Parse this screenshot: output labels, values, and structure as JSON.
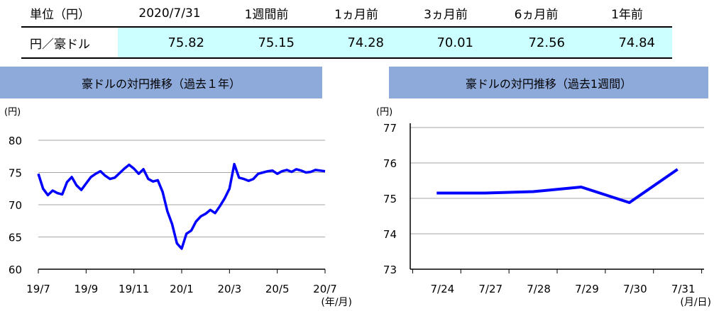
{
  "table": {
    "unit_label": "単位（円）",
    "columns": [
      "2020/7/31",
      "1週間前",
      "1ヵ月前",
      "3ヵ月前",
      "6ヵ月前",
      "1年前"
    ],
    "row_label": "円／豪ドル",
    "values": [
      "75.82",
      "75.15",
      "74.28",
      "70.01",
      "72.56",
      "74.84"
    ]
  },
  "chart_data": [
    {
      "type": "line",
      "title": "豪ドルの対円推移（過去１年）",
      "ylabel": "(円)",
      "xlabel": "(年/月)",
      "ylim": [
        60,
        80
      ],
      "yticks": [
        "60",
        "65",
        "70",
        "75",
        "80"
      ],
      "x_tick_labels": [
        "19/7",
        "19/9",
        "19/11",
        "20/1",
        "20/3",
        "20/5",
        "20/7"
      ],
      "grid": true,
      "line_color": "#0000ff",
      "series": [
        {
          "x": [
            0,
            0.1,
            0.2,
            0.3,
            0.4,
            0.5,
            0.6,
            0.7,
            0.8,
            0.9,
            1.0,
            1.1,
            1.2,
            1.3,
            1.4,
            1.5,
            1.6,
            1.7,
            1.8,
            1.9,
            2.0,
            2.1,
            2.2,
            2.3,
            2.4,
            2.5,
            2.6,
            2.7,
            2.8,
            2.9,
            3.0,
            3.1,
            3.2,
            3.3,
            3.4,
            3.5,
            3.6,
            3.7,
            3.8,
            3.9,
            4.0,
            4.1,
            4.2,
            4.3,
            4.4,
            4.5,
            4.6,
            4.7,
            4.8,
            4.9,
            5.0,
            5.1,
            5.2,
            5.3,
            5.4,
            5.5,
            5.6,
            5.7,
            5.8,
            5.9,
            6.0
          ],
          "y": [
            74.8,
            72.5,
            71.5,
            72.2,
            71.8,
            71.6,
            73.5,
            74.3,
            73.0,
            72.3,
            73.3,
            74.3,
            74.8,
            75.2,
            74.5,
            74.0,
            74.2,
            74.9,
            75.6,
            76.2,
            75.6,
            74.8,
            75.5,
            74.0,
            73.6,
            73.8,
            72.0,
            69.0,
            67.0,
            64.0,
            63.2,
            65.5,
            66.0,
            67.4,
            68.2,
            68.6,
            69.2,
            68.7,
            69.8,
            71.0,
            72.5,
            76.3,
            74.2,
            74.0,
            73.7,
            74.0,
            74.8,
            75.0,
            75.2,
            75.3,
            74.8,
            75.2,
            75.4,
            75.1,
            75.5,
            75.3,
            75.0,
            75.1,
            75.4,
            75.3,
            75.2
          ]
        }
      ]
    },
    {
      "type": "line",
      "title": "豪ドルの対円推移（過去1週間）",
      "ylabel": "(円)",
      "xlabel": "(月/日)",
      "ylim": [
        73,
        77
      ],
      "yticks": [
        "73",
        "74",
        "75",
        "76",
        "77"
      ],
      "categories": [
        "7/24",
        "7/27",
        "7/28",
        "7/29",
        "7/30",
        "7/31"
      ],
      "grid": true,
      "line_color": "#0000ff",
      "series": [
        {
          "values": [
            75.15,
            75.15,
            75.19,
            75.32,
            74.88,
            75.82
          ]
        }
      ]
    }
  ]
}
